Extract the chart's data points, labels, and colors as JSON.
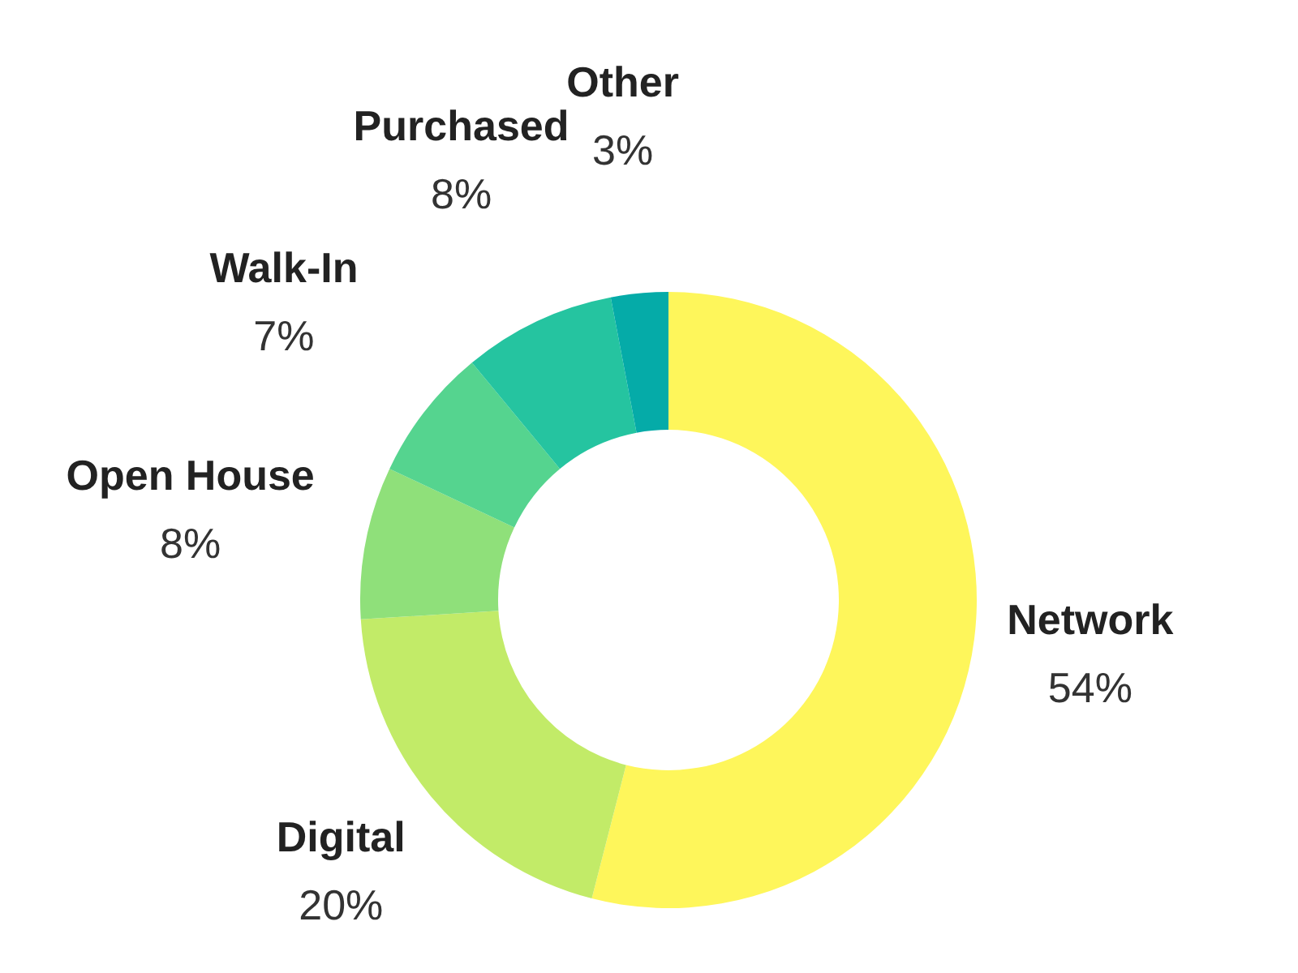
{
  "chart_data": {
    "type": "donut",
    "categories": [
      "Network",
      "Digital",
      "Open House",
      "Walk-In",
      "Purchased",
      "Other"
    ],
    "values": [
      54,
      20,
      8,
      7,
      8,
      3
    ],
    "colors": [
      "#fef65b",
      "#c2eb68",
      "#8fe07a",
      "#55d48f",
      "#25c4a0",
      "#05aba8"
    ],
    "value_labels": [
      "54%",
      "20%",
      "8%",
      "7%",
      "8%",
      "3%"
    ]
  }
}
